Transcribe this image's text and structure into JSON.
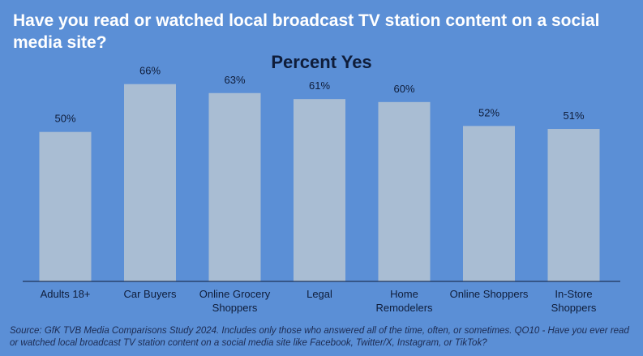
{
  "title": "Have you read or watched local broadcast TV station content on a social media site?",
  "source_note": "Source: GfK TVB Media Comparisons Study 2024. Includes only those who answered all of the time, often, or sometimes. QO10 - Have you ever read or watched local broadcast TV station content on a social media site like Facebook, Twitter/X, Instagram, or TikTok?",
  "colors": {
    "background": "#5b8fd6",
    "bar": "#a9bdd3",
    "title": "#ffffff",
    "text": "#0f1d3a"
  },
  "chart_data": {
    "type": "bar",
    "title": "Percent Yes",
    "xlabel": "",
    "ylabel": "",
    "ylim": [
      0,
      72
    ],
    "grid": false,
    "categories": [
      [
        "Adults 18+"
      ],
      [
        "Car Buyers"
      ],
      [
        "Online Grocery",
        "Shoppers"
      ],
      [
        "Legal"
      ],
      [
        "Home",
        "Remodelers"
      ],
      [
        "Online Shoppers"
      ],
      [
        "In-Store",
        "Shoppers"
      ]
    ],
    "values": [
      50,
      66,
      63,
      61,
      60,
      52,
      51
    ],
    "value_labels": [
      "50%",
      "66%",
      "63%",
      "61%",
      "60%",
      "52%",
      "51%"
    ]
  }
}
